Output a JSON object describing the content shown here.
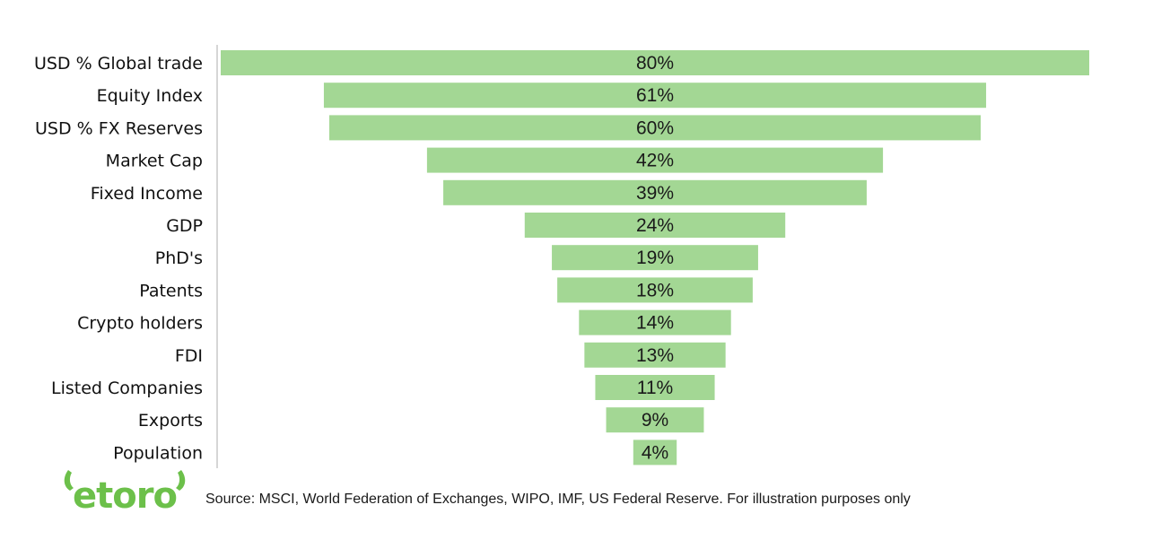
{
  "chart_data": {
    "type": "bar",
    "orientation": "horizontal",
    "layout": "centered-funnel",
    "categories": [
      "USD % Global trade",
      "Equity Index",
      "USD % FX Reserves",
      "Market Cap",
      "Fixed Income",
      "GDP",
      "PhD's",
      "Patents",
      "Crypto holders",
      "FDI",
      "Listed Companies",
      "Exports",
      "Population"
    ],
    "values": [
      80,
      61,
      60,
      42,
      39,
      24,
      19,
      18,
      14,
      13,
      11,
      9,
      4
    ],
    "value_labels": [
      "80%",
      "61%",
      "60%",
      "42%",
      "39%",
      "24%",
      "19%",
      "18%",
      "14%",
      "13%",
      "11%",
      "9%",
      "4%"
    ],
    "unit": "%",
    "xlim": [
      0,
      80
    ],
    "grid": false,
    "legend": "none",
    "bar_color": "#a3d794"
  },
  "footer": {
    "logo_text": "etoro",
    "logo_color": "#6cc04a",
    "source_note": "Source: MSCI, World Federation of Exchanges, WIPO, IMF, US Federal Reserve. For illustration purposes only"
  }
}
